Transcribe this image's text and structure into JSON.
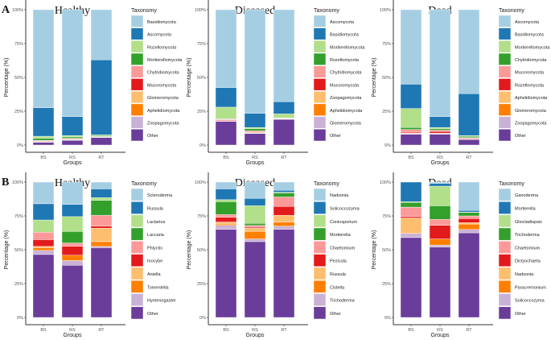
{
  "palette": [
    "#A6CEE3",
    "#1F78B4",
    "#B2DF8A",
    "#33A02C",
    "#FB9A99",
    "#E31A1C",
    "#FDBF6F",
    "#FF7F00",
    "#CAB2D6",
    "#6A3D9A"
  ],
  "chart_data": [
    {
      "panel": "A",
      "title": "Healthy",
      "type": "bar",
      "stacked": true,
      "categories": [
        "BS",
        "RS",
        "RT"
      ],
      "xlabel": "Groups",
      "ylabel": "Percentage (%)",
      "ylim": [
        0,
        100
      ],
      "yticks": [
        "0%",
        "25%",
        "50%",
        "75%",
        "100%"
      ],
      "legend_title": "Taxonomy",
      "legend_position": "right",
      "series": [
        {
          "name": "Basidiomycota",
          "values": [
            72.5,
            79,
            37
          ]
        },
        {
          "name": "Ascomycota",
          "values": [
            21,
            14,
            55.5
          ]
        },
        {
          "name": "Rozellomycota",
          "values": [
            1.5,
            1,
            0.5
          ]
        },
        {
          "name": "Mortierellomycota",
          "values": [
            1.5,
            1,
            0.7
          ]
        },
        {
          "name": "Chytridiomycota",
          "values": [
            0.3,
            0.3,
            0.2
          ]
        },
        {
          "name": "Mucoromycota",
          "values": [
            0.5,
            0.5,
            0.2
          ]
        },
        {
          "name": "Glomeromycota",
          "values": [
            0.2,
            0.2,
            0.1
          ]
        },
        {
          "name": "Aphelidiomycota",
          "values": [
            0.2,
            0.2,
            0.1
          ]
        },
        {
          "name": "Zoopagomycota",
          "values": [
            0.3,
            0.3,
            0.2
          ]
        },
        {
          "name": "Other",
          "values": [
            2,
            3.5,
            5.5
          ]
        }
      ]
    },
    {
      "panel": "",
      "title": "Diseased",
      "type": "bar",
      "stacked": true,
      "categories": [
        "BS",
        "RS",
        "RT"
      ],
      "xlabel": "Groups",
      "ylabel": "Percentage (%)",
      "ylim": [
        0,
        100
      ],
      "yticks": [
        "0%",
        "25%",
        "50%",
        "75%",
        "100%"
      ],
      "legend_title": "Taxonomy",
      "legend_position": "right",
      "series": [
        {
          "name": "Ascomycota",
          "values": [
            57.5,
            76.5,
            68
          ]
        },
        {
          "name": "Basidiomycota",
          "values": [
            14.5,
            10.5,
            9
          ]
        },
        {
          "name": "Mortierellomycota",
          "values": [
            8.5,
            1,
            3
          ]
        },
        {
          "name": "Rozellomycota",
          "values": [
            0.4,
            1.5,
            0.2
          ]
        },
        {
          "name": "Chytridiomycota",
          "values": [
            0.5,
            0.7,
            0.3
          ]
        },
        {
          "name": "Mucoromycota",
          "values": [
            0.5,
            0.5,
            0.2
          ]
        },
        {
          "name": "Zoopagomycota",
          "values": [
            0.3,
            0.5,
            0.1
          ]
        },
        {
          "name": "Aphelidiomycota",
          "values": [
            0.1,
            0.1,
            0.1
          ]
        },
        {
          "name": "Glomeromycota",
          "values": [
            0.2,
            0.2,
            0.1
          ]
        },
        {
          "name": "Other",
          "values": [
            17.5,
            8.5,
            19
          ]
        }
      ]
    },
    {
      "panel": "",
      "title": "Dead",
      "type": "bar",
      "stacked": true,
      "categories": [
        "BS",
        "RS",
        "RT"
      ],
      "xlabel": "Groups",
      "ylabel": "Percentage (%)",
      "ylim": [
        0,
        100
      ],
      "yticks": [
        "0%",
        "25%",
        "50%",
        "75%",
        "100%"
      ],
      "legend_title": "Taxonomy",
      "legend_position": "right",
      "series": [
        {
          "name": "Ascomycota",
          "values": [
            55,
            79,
            62
          ]
        },
        {
          "name": "Basidiomycota",
          "values": [
            18,
            8,
            31
          ]
        },
        {
          "name": "Mortierellomycota",
          "values": [
            14,
            1,
            0.5
          ]
        },
        {
          "name": "Chytridiomycota",
          "values": [
            1.5,
            1,
            1
          ]
        },
        {
          "name": "Mucoromycota",
          "values": [
            2,
            1,
            0.5
          ]
        },
        {
          "name": "Rozellomycota",
          "values": [
            0.8,
            1.3,
            0.5
          ]
        },
        {
          "name": "Aphelidiomycota",
          "values": [
            0.2,
            0.2,
            0.2
          ]
        },
        {
          "name": "Glomeromycota",
          "values": [
            0.2,
            0.2,
            0.1
          ]
        },
        {
          "name": "Zoopagomycota",
          "values": [
            0.3,
            0.3,
            0.2
          ]
        },
        {
          "name": "Other",
          "values": [
            8,
            8,
            4
          ]
        }
      ]
    },
    {
      "panel": "B",
      "title": "Healthy",
      "type": "bar",
      "stacked": true,
      "categories": [
        "BS",
        "RS",
        "RT"
      ],
      "xlabel": "Groups",
      "ylabel": "Percentage (%)",
      "ylim": [
        0,
        100
      ],
      "yticks": [
        "0%",
        "25%",
        "50%",
        "75%",
        "100%"
      ],
      "legend_title": "Taxonomy",
      "legend_position": "right",
      "series": [
        {
          "name": "Scleroderma",
          "values": [
            16,
            16.5,
            5
          ]
        },
        {
          "name": "Russula",
          "values": [
            12,
            9,
            6.5
          ]
        },
        {
          "name": "Lactarius",
          "values": [
            9,
            11,
            2
          ]
        },
        {
          "name": "Laccaria",
          "values": [
            0,
            8.5,
            11
          ]
        },
        {
          "name": "Phlyctis",
          "values": [
            5.5,
            2.5,
            8
          ]
        },
        {
          "name": "Inocybe",
          "values": [
            5,
            6.5,
            1.5
          ]
        },
        {
          "name": "Aniella",
          "values": [
            1,
            0,
            10
          ]
        },
        {
          "name": "Tomentella",
          "values": [
            2,
            4,
            3.5
          ]
        },
        {
          "name": "Hymenogaster",
          "values": [
            3,
            3.5,
            1
          ]
        },
        {
          "name": "Other",
          "values": [
            46.5,
            38.5,
            51.5
          ]
        }
      ]
    },
    {
      "panel": "",
      "title": "Diseased",
      "type": "bar",
      "stacked": true,
      "categories": [
        "BS",
        "RS",
        "RT"
      ],
      "xlabel": "Groups",
      "ylabel": "Percentage (%)",
      "ylim": [
        0,
        100
      ],
      "yticks": [
        "0%",
        "25%",
        "50%",
        "75%",
        "100%"
      ],
      "legend_title": "Taxonomy",
      "legend_position": "right",
      "series": [
        {
          "name": "Nadsonia",
          "values": [
            5,
            12,
            6
          ]
        },
        {
          "name": "Solicoccozyma",
          "values": [
            8,
            5.5,
            1.5
          ]
        },
        {
          "name": "Coniosporium",
          "values": [
            1.5,
            13,
            0.5
          ]
        },
        {
          "name": "Mortierella",
          "values": [
            9.5,
            1.5,
            3
          ]
        },
        {
          "name": "Chaetomium",
          "values": [
            2,
            1.3,
            7
          ]
        },
        {
          "name": "Pezicula",
          "values": [
            3.5,
            0.7,
            6.5
          ]
        },
        {
          "name": "Russula",
          "values": [
            1.5,
            2.5,
            5
          ]
        },
        {
          "name": "Cistella",
          "values": [
            1,
            5.5,
            3
          ]
        },
        {
          "name": "Trichoderma",
          "values": [
            3,
            2,
            2.5
          ]
        },
        {
          "name": "Other",
          "values": [
            65,
            56,
            65
          ]
        }
      ]
    },
    {
      "panel": "",
      "title": "Dead",
      "type": "bar",
      "stacked": true,
      "categories": [
        "BS",
        "RS",
        "RT"
      ],
      "xlabel": "Groups",
      "ylabel": "Percentage (%)",
      "ylim": [
        0,
        100
      ],
      "yticks": [
        "0%",
        "25%",
        "50%",
        "75%",
        "100%"
      ],
      "legend_title": "Taxonomy",
      "legend_position": "right",
      "series": [
        {
          "name": "Ganoderma",
          "values": [
            0,
            1,
            21
          ]
        },
        {
          "name": "Mortierella",
          "values": [
            14.5,
            2,
            1.2
          ]
        },
        {
          "name": "Gliocladiopsis",
          "values": [
            0.5,
            14.5,
            0.3
          ]
        },
        {
          "name": "Trichoderma",
          "values": [
            3.5,
            10,
            2.5
          ]
        },
        {
          "name": "Chaetomium",
          "values": [
            7,
            4.5,
            2
          ]
        },
        {
          "name": "Dictyochaeta",
          "values": [
            1,
            10,
            3
          ]
        },
        {
          "name": "Nadsonia",
          "values": [
            11.5,
            0,
            1
          ]
        },
        {
          "name": "Paracremonium",
          "values": [
            0,
            4.5,
            4
          ]
        },
        {
          "name": "Solicoccozyma",
          "values": [
            3,
            1.5,
            2.5
          ]
        },
        {
          "name": "Other",
          "values": [
            59,
            52,
            62.5
          ]
        }
      ]
    }
  ]
}
